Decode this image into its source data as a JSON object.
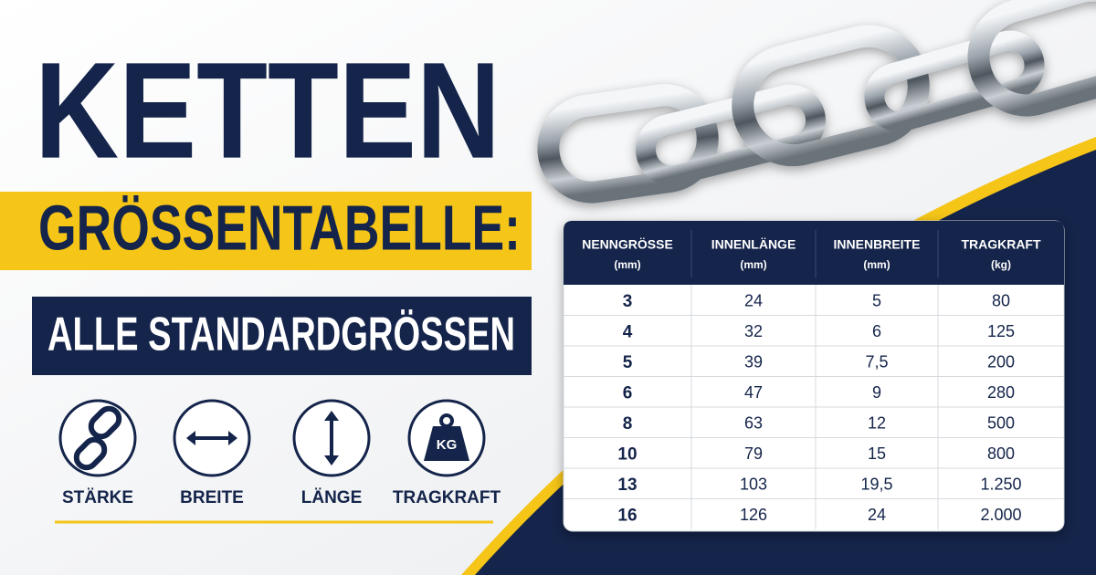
{
  "title": "KETTEN",
  "subtitle": "GRÖSSENTABELLE:",
  "tagline": "ALLE STANDARDGRÖSSEN",
  "icons": [
    {
      "label": "STÄRKE"
    },
    {
      "label": "BREITE"
    },
    {
      "label": "LÄNGE"
    },
    {
      "label": "TRAGKRAFT",
      "badge": "KG"
    }
  ],
  "table": {
    "columns": [
      {
        "name": "NENNGRÖSSE",
        "unit": "(mm)"
      },
      {
        "name": "INNENLÄNGE",
        "unit": "(mm)"
      },
      {
        "name": "INNENBREITE",
        "unit": "(mm)"
      },
      {
        "name": "TRAGKRAFT",
        "unit": "(kg)"
      }
    ],
    "rows": [
      [
        "3",
        "24",
        "5",
        "80"
      ],
      [
        "4",
        "32",
        "6",
        "125"
      ],
      [
        "5",
        "39",
        "7,5",
        "200"
      ],
      [
        "6",
        "47",
        "9",
        "280"
      ],
      [
        "8",
        "63",
        "12",
        "500"
      ],
      [
        "10",
        "79",
        "15",
        "800"
      ],
      [
        "13",
        "103",
        "19,5",
        "1.250"
      ],
      [
        "16",
        "126",
        "24",
        "2.000"
      ]
    ]
  }
}
